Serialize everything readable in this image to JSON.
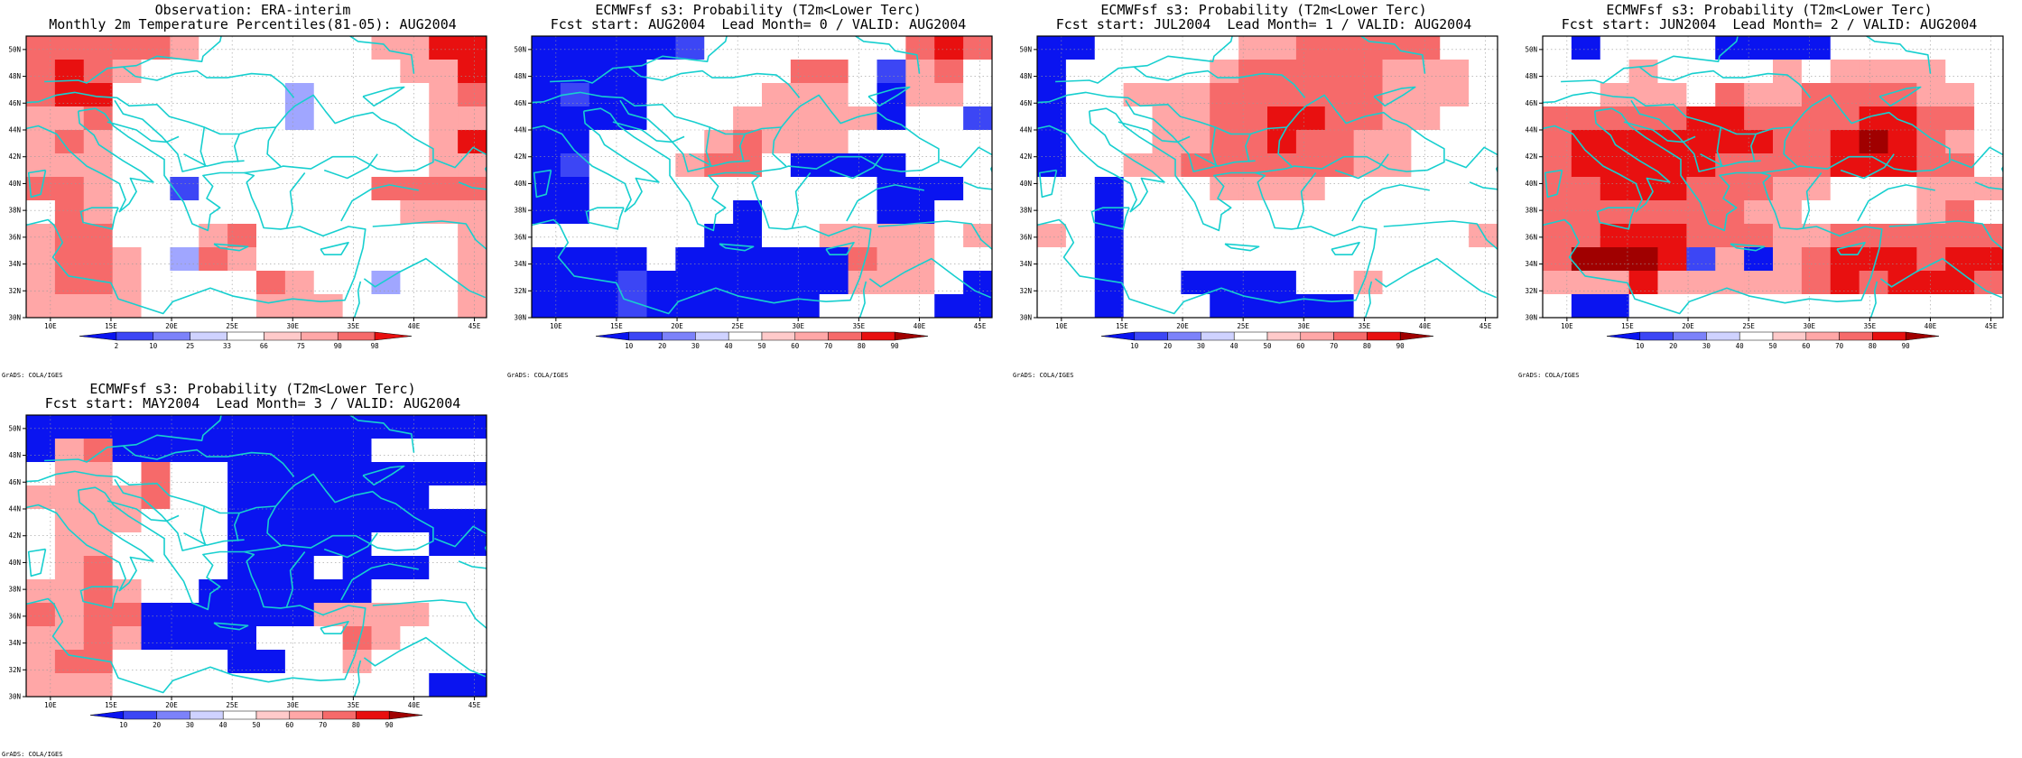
{
  "chart_data": [
    {
      "type": "heatmap",
      "title": "Observation: ERA-interim",
      "subtitle": "Monthly 2m Temperature Percentiles(81-05): AUG2004",
      "x_ticks": [
        "10E",
        "15E",
        "20E",
        "25E",
        "30E",
        "35E",
        "40E",
        "45E"
      ],
      "y_ticks": [
        "30N",
        "32N",
        "34N",
        "36N",
        "38N",
        "40N",
        "42N",
        "44N",
        "46N",
        "48N",
        "50N"
      ],
      "colorbar": [
        "2",
        "10",
        "25",
        "33",
        "66",
        "75",
        "90",
        "98"
      ],
      "colorbar_kind": "percentile",
      "credit": "GrADS: COLA/IGES",
      "levels_rows_top_to_bottom": [
        [
          5,
          5,
          5,
          5,
          5,
          4,
          0,
          0,
          0,
          0,
          0,
          0,
          4,
          4,
          6,
          6
        ],
        [
          5,
          6,
          5,
          4,
          0,
          0,
          0,
          0,
          0,
          0,
          0,
          0,
          0,
          4,
          4,
          6
        ],
        [
          5,
          6,
          6,
          0,
          0,
          0,
          0,
          0,
          0,
          -2,
          0,
          0,
          0,
          0,
          4,
          5
        ],
        [
          4,
          4,
          5,
          0,
          0,
          0,
          0,
          0,
          0,
          -2,
          0,
          0,
          0,
          0,
          4,
          4
        ],
        [
          4,
          5,
          4,
          0,
          0,
          0,
          0,
          0,
          0,
          0,
          0,
          0,
          0,
          0,
          4,
          6
        ],
        [
          4,
          4,
          4,
          0,
          0,
          0,
          0,
          0,
          0,
          0,
          0,
          0,
          0,
          0,
          4,
          4
        ],
        [
          5,
          5,
          4,
          0,
          0,
          -3,
          0,
          0,
          0,
          0,
          0,
          0,
          5,
          5,
          5,
          5
        ],
        [
          0,
          5,
          4,
          0,
          0,
          0,
          0,
          0,
          0,
          0,
          0,
          0,
          0,
          4,
          4,
          4
        ],
        [
          4,
          5,
          5,
          0,
          0,
          0,
          4,
          5,
          0,
          0,
          0,
          0,
          0,
          0,
          0,
          4
        ],
        [
          4,
          5,
          5,
          4,
          0,
          -2,
          5,
          4,
          0,
          0,
          0,
          0,
          0,
          0,
          0,
          4
        ],
        [
          4,
          5,
          5,
          4,
          0,
          0,
          0,
          0,
          5,
          4,
          0,
          0,
          -2,
          0,
          0,
          4
        ],
        [
          4,
          4,
          4,
          4,
          0,
          0,
          0,
          0,
          4,
          4,
          4,
          0,
          0,
          0,
          0,
          4
        ]
      ]
    },
    {
      "type": "heatmap",
      "title": "ECMWFsf s3: Probability (T2m<Lower Terc)",
      "subtitle": "Fcst start: AUG2004  Lead Month= 0 / VALID: AUG2004",
      "x_ticks": [
        "10E",
        "15E",
        "20E",
        "25E",
        "30E",
        "35E",
        "40E",
        "45E"
      ],
      "y_ticks": [
        "30N",
        "32N",
        "34N",
        "36N",
        "38N",
        "40N",
        "42N",
        "44N",
        "46N",
        "48N",
        "50N"
      ],
      "colorbar": [
        "10",
        "20",
        "30",
        "40",
        "50",
        "60",
        "70",
        "80",
        "90"
      ],
      "colorbar_kind": "probability",
      "credit": "GrADS: COLA/IGES",
      "levels_rows_top_to_bottom": [
        [
          -4,
          -4,
          -4,
          -4,
          -4,
          -3,
          0,
          0,
          0,
          0,
          0,
          0,
          0,
          5,
          6,
          5
        ],
        [
          -4,
          -4,
          -4,
          -4,
          0,
          0,
          0,
          0,
          0,
          5,
          5,
          0,
          -3,
          4,
          5,
          0
        ],
        [
          -4,
          -3,
          -4,
          -4,
          0,
          0,
          0,
          0,
          4,
          4,
          4,
          0,
          -4,
          4,
          4,
          0
        ],
        [
          -4,
          -4,
          -4,
          -4,
          0,
          0,
          0,
          4,
          4,
          4,
          4,
          4,
          -4,
          0,
          0,
          -3
        ],
        [
          -4,
          -4,
          0,
          0,
          0,
          0,
          4,
          5,
          4,
          4,
          4,
          0,
          0,
          0,
          0,
          0
        ],
        [
          -4,
          -3,
          0,
          0,
          0,
          4,
          5,
          5,
          0,
          -4,
          -4,
          -4,
          -4,
          0,
          0,
          0
        ],
        [
          -4,
          -4,
          0,
          0,
          0,
          0,
          0,
          0,
          0,
          0,
          0,
          0,
          -4,
          -4,
          -4,
          0
        ],
        [
          -4,
          -4,
          0,
          0,
          0,
          0,
          0,
          -4,
          0,
          0,
          0,
          0,
          -4,
          -4,
          0,
          0
        ],
        [
          0,
          0,
          0,
          0,
          0,
          0,
          -4,
          -4,
          0,
          0,
          4,
          4,
          4,
          4,
          0,
          4
        ],
        [
          -4,
          -4,
          -4,
          -4,
          0,
          -4,
          -4,
          -4,
          -4,
          -4,
          -4,
          5,
          4,
          4,
          0,
          0
        ],
        [
          -4,
          -4,
          -4,
          -3,
          -4,
          -4,
          -4,
          -4,
          -4,
          -4,
          -4,
          4,
          4,
          4,
          0,
          -4
        ],
        [
          -4,
          -4,
          -4,
          -3,
          -4,
          -4,
          -4,
          -4,
          -4,
          -4,
          0,
          0,
          0,
          0,
          -4,
          -4
        ]
      ]
    },
    {
      "type": "heatmap",
      "title": "ECMWFsf s3: Probability (T2m<Lower Terc)",
      "subtitle": "Fcst start: JUL2004  Lead Month= 1 / VALID: AUG2004",
      "x_ticks": [
        "10E",
        "15E",
        "20E",
        "25E",
        "30E",
        "35E",
        "40E",
        "45E"
      ],
      "y_ticks": [
        "30N",
        "32N",
        "34N",
        "36N",
        "38N",
        "40N",
        "42N",
        "44N",
        "46N",
        "48N",
        "50N"
      ],
      "colorbar": [
        "10",
        "20",
        "30",
        "40",
        "50",
        "60",
        "70",
        "80",
        "90"
      ],
      "colorbar_kind": "probability",
      "credit": "GrADS: COLA/IGES",
      "levels_rows_top_to_bottom": [
        [
          -4,
          -4,
          0,
          0,
          0,
          0,
          0,
          4,
          4,
          5,
          5,
          5,
          5,
          5,
          0,
          0
        ],
        [
          -4,
          0,
          0,
          0,
          0,
          0,
          4,
          5,
          5,
          5,
          5,
          5,
          4,
          4,
          4,
          0
        ],
        [
          -4,
          0,
          0,
          4,
          4,
          4,
          5,
          5,
          5,
          5,
          5,
          5,
          4,
          4,
          4,
          0
        ],
        [
          -4,
          0,
          0,
          0,
          4,
          4,
          5,
          5,
          6,
          6,
          5,
          5,
          4,
          4,
          0,
          0
        ],
        [
          -4,
          0,
          0,
          0,
          4,
          4,
          5,
          5,
          6,
          5,
          5,
          4,
          4,
          0,
          0,
          0
        ],
        [
          -4,
          0,
          0,
          4,
          4,
          5,
          5,
          5,
          5,
          5,
          5,
          4,
          4,
          0,
          0,
          0
        ],
        [
          0,
          0,
          -4,
          0,
          0,
          0,
          4,
          4,
          4,
          4,
          0,
          0,
          0,
          0,
          0,
          0
        ],
        [
          0,
          0,
          -4,
          0,
          0,
          0,
          0,
          0,
          0,
          0,
          0,
          0,
          0,
          0,
          0,
          0
        ],
        [
          4,
          0,
          -4,
          0,
          0,
          0,
          0,
          0,
          0,
          0,
          0,
          0,
          0,
          0,
          0,
          4
        ],
        [
          0,
          0,
          -4,
          0,
          0,
          0,
          0,
          0,
          0,
          0,
          0,
          0,
          0,
          0,
          0,
          0
        ],
        [
          0,
          0,
          -4,
          0,
          0,
          -4,
          -4,
          -4,
          -4,
          0,
          0,
          4,
          0,
          0,
          0,
          0
        ],
        [
          0,
          0,
          -4,
          0,
          0,
          0,
          -4,
          -4,
          -4,
          -4,
          -4,
          0,
          0,
          0,
          0,
          0
        ]
      ]
    },
    {
      "type": "heatmap",
      "title": "ECMWFsf s3: Probability (T2m<Lower Terc)",
      "subtitle": "Fcst start: JUN2004  Lead Month= 2 / VALID: AUG2004",
      "x_ticks": [
        "10E",
        "15E",
        "20E",
        "25E",
        "30E",
        "35E",
        "40E",
        "45E"
      ],
      "y_ticks": [
        "30N",
        "32N",
        "34N",
        "36N",
        "38N",
        "40N",
        "42N",
        "44N",
        "46N",
        "48N",
        "50N"
      ],
      "colorbar": [
        "10",
        "20",
        "30",
        "40",
        "50",
        "60",
        "70",
        "80",
        "90"
      ],
      "colorbar_kind": "probability",
      "credit": "GrADS: COLA/IGES",
      "levels_rows_top_to_bottom": [
        [
          0,
          -4,
          0,
          0,
          0,
          0,
          -4,
          -4,
          -4,
          -4,
          0,
          0,
          0,
          0,
          0,
          0
        ],
        [
          0,
          0,
          0,
          4,
          0,
          0,
          0,
          0,
          4,
          0,
          4,
          4,
          4,
          4,
          0,
          0
        ],
        [
          0,
          0,
          4,
          4,
          4,
          0,
          5,
          4,
          4,
          5,
          5,
          5,
          5,
          4,
          4,
          0
        ],
        [
          5,
          5,
          5,
          5,
          5,
          6,
          6,
          5,
          5,
          5,
          5,
          6,
          6,
          5,
          5,
          0
        ],
        [
          5,
          6,
          6,
          6,
          6,
          6,
          6,
          6,
          5,
          5,
          6,
          7,
          6,
          5,
          4,
          0
        ],
        [
          5,
          6,
          6,
          6,
          6,
          6,
          5,
          5,
          5,
          5,
          6,
          6,
          6,
          5,
          5,
          0
        ],
        [
          5,
          5,
          6,
          6,
          6,
          5,
          5,
          5,
          4,
          4,
          0,
          0,
          0,
          4,
          4,
          4
        ],
        [
          5,
          5,
          5,
          5,
          5,
          5,
          5,
          4,
          4,
          0,
          0,
          0,
          0,
          4,
          5,
          0
        ],
        [
          5,
          5,
          6,
          6,
          6,
          5,
          5,
          5,
          4,
          4,
          5,
          5,
          5,
          5,
          5,
          5
        ],
        [
          5,
          7,
          7,
          7,
          6,
          -3,
          4,
          -4,
          4,
          5,
          6,
          6,
          6,
          5,
          6,
          6
        ],
        [
          4,
          4,
          4,
          6,
          4,
          4,
          4,
          4,
          4,
          5,
          6,
          5,
          6,
          6,
          6,
          5
        ],
        [
          0,
          -4,
          -4,
          0,
          0,
          0,
          0,
          0,
          0,
          0,
          0,
          0,
          0,
          0,
          0,
          0
        ]
      ]
    },
    {
      "type": "heatmap",
      "title": "ECMWFsf s3: Probability (T2m<Lower Terc)",
      "subtitle": "Fcst start: MAY2004  Lead Month= 3 / VALID: AUG2004",
      "x_ticks": [
        "10E",
        "15E",
        "20E",
        "25E",
        "30E",
        "35E",
        "40E",
        "45E"
      ],
      "y_ticks": [
        "30N",
        "32N",
        "34N",
        "36N",
        "38N",
        "40N",
        "42N",
        "44N",
        "46N",
        "48N",
        "50N"
      ],
      "colorbar": [
        "10",
        "20",
        "30",
        "40",
        "50",
        "60",
        "70",
        "80",
        "90"
      ],
      "colorbar_kind": "probability",
      "credit": "GrADS: COLA/IGES",
      "levels_rows_top_to_bottom": [
        [
          -4,
          -4,
          -4,
          -4,
          -4,
          -4,
          -4,
          -4,
          -4,
          -4,
          -4,
          -4,
          -4,
          -4,
          -4,
          -4
        ],
        [
          -4,
          4,
          5,
          -4,
          -4,
          -4,
          -4,
          -4,
          -4,
          -4,
          -4,
          -4,
          0,
          0,
          0,
          0
        ],
        [
          0,
          4,
          4,
          0,
          5,
          0,
          0,
          -4,
          -4,
          -4,
          -4,
          -4,
          -4,
          -4,
          -4,
          -4
        ],
        [
          4,
          4,
          4,
          4,
          5,
          0,
          0,
          -4,
          -4,
          -4,
          -4,
          -4,
          -4,
          -4,
          0,
          0
        ],
        [
          0,
          4,
          4,
          4,
          0,
          0,
          0,
          -4,
          -4,
          -4,
          -4,
          -4,
          -4,
          -4,
          -4,
          -4
        ],
        [
          0,
          4,
          4,
          0,
          0,
          0,
          0,
          -4,
          -4,
          -4,
          -4,
          -4,
          0,
          0,
          -4,
          -4
        ],
        [
          0,
          4,
          5,
          0,
          0,
          0,
          0,
          -4,
          -4,
          -4,
          0,
          -4,
          -4,
          -4,
          0,
          0
        ],
        [
          4,
          4,
          5,
          4,
          0,
          0,
          -4,
          -4,
          -4,
          -4,
          -4,
          -4,
          0,
          0,
          0,
          0
        ],
        [
          5,
          4,
          5,
          5,
          -4,
          -4,
          -4,
          -4,
          -4,
          -4,
          4,
          4,
          4,
          4,
          0,
          0
        ],
        [
          4,
          4,
          5,
          4,
          -4,
          -4,
          -4,
          -4,
          0,
          0,
          0,
          5,
          4,
          0,
          0,
          0
        ],
        [
          4,
          5,
          5,
          0,
          0,
          0,
          0,
          -4,
          -4,
          0,
          0,
          4,
          0,
          0,
          0,
          0
        ],
        [
          4,
          4,
          4,
          0,
          0,
          0,
          0,
          0,
          0,
          0,
          0,
          0,
          0,
          0,
          -4,
          -4
        ]
      ]
    }
  ]
}
